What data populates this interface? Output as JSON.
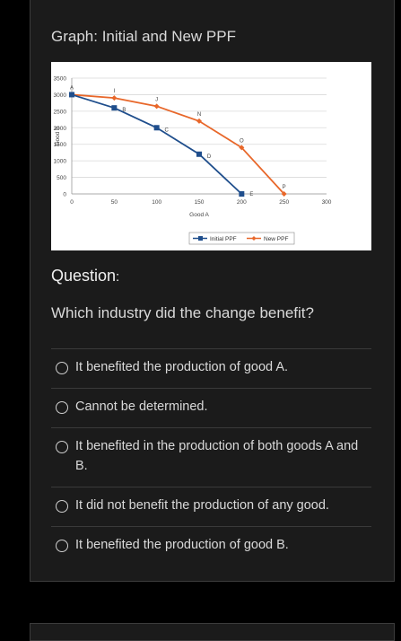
{
  "graph_title": "Graph: Initial and New PPF",
  "question": {
    "heading": "Question",
    "heading_suffix": ":",
    "text": "Which industry did the change benefit?"
  },
  "options": [
    {
      "label": "It benefited the production of good A."
    },
    {
      "label": "Cannot be determined."
    },
    {
      "label": "It benefited in the production of both goods A and B."
    },
    {
      "label": "It did not benefit the production of any good."
    },
    {
      "label": "It benefited the production of good B."
    }
  ],
  "chart_data": {
    "type": "line",
    "xlabel": "Good A",
    "ylabel": "Good B",
    "xlim": [
      0,
      300
    ],
    "ylim": [
      0,
      3500
    ],
    "xticks": [
      0,
      50,
      100,
      150,
      200,
      250,
      300
    ],
    "yticks": [
      0,
      500,
      1000,
      1500,
      2000,
      2500,
      3000,
      3500
    ],
    "grid": true,
    "legend": "bottom",
    "series": [
      {
        "name": "Initial PPF",
        "color": "#1f4e8c",
        "marker": "square",
        "points": [
          {
            "x": 0,
            "y": 3000,
            "label": "A"
          },
          {
            "x": 50,
            "y": 2600,
            "label": "B"
          },
          {
            "x": 100,
            "y": 2000,
            "label": "C"
          },
          {
            "x": 150,
            "y": 1200,
            "label": "D"
          },
          {
            "x": 200,
            "y": 0,
            "label": "E"
          }
        ]
      },
      {
        "name": "New PPF",
        "color": "#e8672a",
        "marker": "diamond",
        "points": [
          {
            "x": 0,
            "y": 3000,
            "label": "A"
          },
          {
            "x": 50,
            "y": 2900,
            "label": "I"
          },
          {
            "x": 100,
            "y": 2650,
            "label": "J"
          },
          {
            "x": 150,
            "y": 2200,
            "label": "N"
          },
          {
            "x": 200,
            "y": 1400,
            "label": "O"
          },
          {
            "x": 250,
            "y": 0,
            "label": "P"
          }
        ]
      }
    ]
  }
}
